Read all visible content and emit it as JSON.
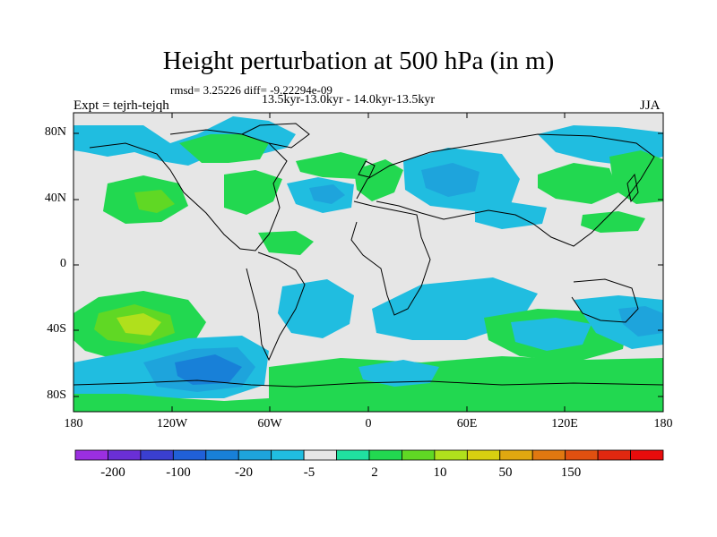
{
  "title": "Height perturbation at 500 hPa (in m)",
  "stats": "rmsd= 3.25226 diff= -9.22294e-09",
  "period": "13.5kyr-13.0kyr - 14.0kyr-13.5kyr",
  "experiment": "Expt = tejrh-tejqh",
  "season": "JJA",
  "lat_ticks": [
    "80N",
    "40N",
    "0",
    "40S",
    "80S"
  ],
  "lon_ticks": [
    "180",
    "120W",
    "60W",
    "0",
    "60E",
    "120E",
    "180"
  ],
  "colorbar_labels": [
    "-200",
    "-100",
    "-20",
    "-5",
    "2",
    "10",
    "50",
    "150"
  ],
  "colorbar_colors": [
    "#9b2fe0",
    "#6a2fd6",
    "#3a3fd0",
    "#2060d8",
    "#1880d8",
    "#1ea4dc",
    "#20bde0",
    "#e6e6e6",
    "#20e0a0",
    "#22d850",
    "#60d824",
    "#b0e01c",
    "#d8d010",
    "#e0a810",
    "#e07810",
    "#e05010",
    "#e02810",
    "#e80c0c"
  ],
  "chart_data": {
    "type": "heatmap",
    "title": "Height perturbation at 500 hPa (in m)",
    "projection": "cylindrical equidistant",
    "lon_range": [
      -180,
      180
    ],
    "lat_range": [
      -90,
      90
    ],
    "contour_levels": [
      -200,
      -100,
      -20,
      -5,
      2,
      10,
      50,
      150
    ],
    "units": "m"
  }
}
